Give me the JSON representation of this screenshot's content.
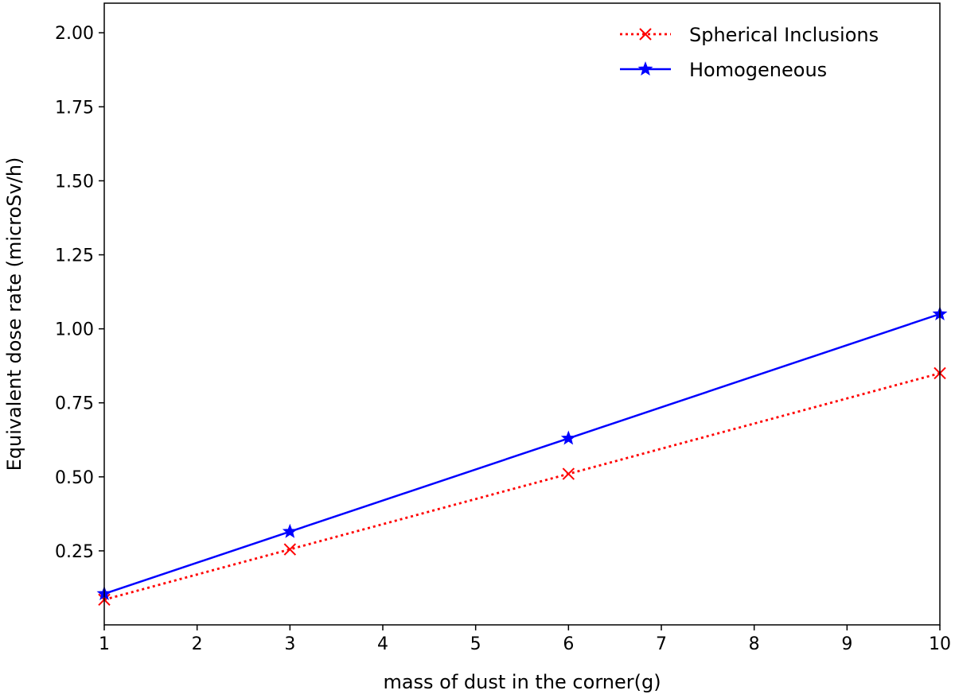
{
  "chart_data": {
    "type": "line",
    "title": "",
    "xlabel": "mass of dust in the corner(g)",
    "ylabel": "Equivalent dose rate (microSv/h)",
    "xlim": [
      1,
      10
    ],
    "ylim": [
      0,
      2.1
    ],
    "x_ticks": [
      1,
      2,
      3,
      4,
      5,
      6,
      7,
      8,
      9,
      10
    ],
    "y_ticks": [
      0.25,
      0.5,
      0.75,
      1.0,
      1.25,
      1.5,
      1.75,
      2.0
    ],
    "y_tick_labels": [
      "0.25",
      "0.50",
      "0.75",
      "1.00",
      "1.25",
      "1.50",
      "1.75",
      "2.00"
    ],
    "grid": false,
    "legend_position": "top-right",
    "series": [
      {
        "name": "Spherical Inclusions",
        "x": [
          1,
          3,
          6,
          10
        ],
        "values": [
          0.085,
          0.255,
          0.51,
          0.85
        ],
        "color": "#ff0000",
        "line_style": "dotted",
        "marker": "x"
      },
      {
        "name": "Homogeneous",
        "x": [
          1,
          3,
          6,
          10
        ],
        "values": [
          0.105,
          0.315,
          0.63,
          1.05
        ],
        "color": "#0000ff",
        "line_style": "solid",
        "marker": "star"
      }
    ]
  }
}
